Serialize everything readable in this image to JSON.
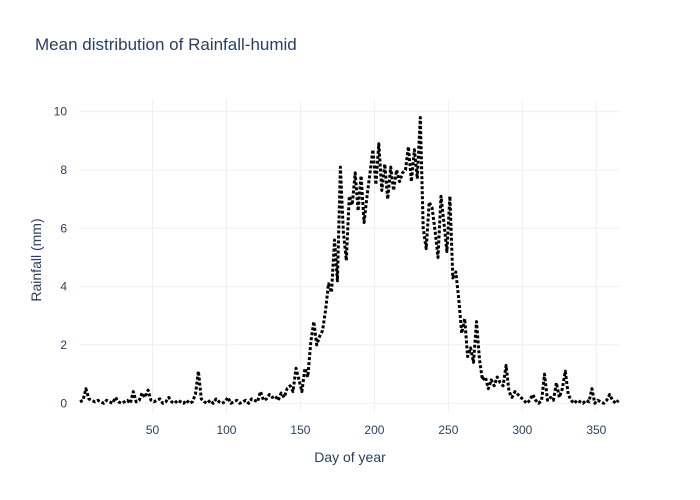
{
  "chart_data": {
    "type": "line",
    "title": "Mean distribution of Rainfall-humid",
    "xlabel": "Day of year",
    "ylabel": "Rainfall (mm)",
    "xlim": [
      1,
      366
    ],
    "ylim": [
      -0.3,
      10.4
    ],
    "x_ticks": [
      50,
      100,
      150,
      200,
      250,
      300,
      350
    ],
    "y_ticks": [
      0,
      2,
      4,
      6,
      8,
      10
    ],
    "grid": true,
    "line_color": "#000000",
    "line_style": "dot",
    "series": [
      {
        "x": [
          1,
          3,
          5,
          7,
          9,
          11,
          13,
          15,
          17,
          19,
          21,
          23,
          25,
          27,
          29,
          31,
          33,
          35,
          37,
          39,
          41,
          43,
          45,
          47,
          49,
          51,
          53,
          55,
          57,
          59,
          61,
          63,
          65,
          67,
          69,
          71,
          73,
          75,
          77,
          79,
          81,
          83,
          85,
          87,
          89,
          91,
          93,
          95,
          97,
          99,
          101,
          103,
          105,
          107,
          109,
          111,
          113,
          115,
          117,
          119,
          121,
          123,
          125,
          127,
          129,
          131,
          133,
          135,
          137,
          139,
          141,
          143,
          145,
          147,
          149,
          151,
          153,
          155,
          157,
          159,
          161,
          163,
          165,
          167,
          169,
          171,
          173,
          175,
          177,
          179,
          181,
          183,
          185,
          187,
          189,
          191,
          193,
          195,
          197,
          199,
          201,
          203,
          205,
          207,
          209,
          211,
          213,
          215,
          217,
          219,
          221,
          223,
          225,
          227,
          229,
          231,
          233,
          235,
          237,
          239,
          241,
          243,
          245,
          247,
          249,
          251,
          253,
          255,
          257,
          259,
          261,
          263,
          265,
          267,
          269,
          271,
          273,
          275,
          277,
          279,
          281,
          283,
          285,
          287,
          289,
          291,
          293,
          295,
          297,
          299,
          301,
          303,
          305,
          307,
          309,
          311,
          313,
          315,
          317,
          319,
          321,
          323,
          325,
          327,
          329,
          331,
          333,
          335,
          337,
          339,
          341,
          343,
          345,
          347,
          349,
          351,
          353,
          355,
          357,
          359,
          361,
          363,
          365
        ],
        "y": [
          0.05,
          0.1,
          0.5,
          0.15,
          0.1,
          0.05,
          0.1,
          0.05,
          0.0,
          0.1,
          0.05,
          0.0,
          0.2,
          0.05,
          0.0,
          0.05,
          0.1,
          0.0,
          0.4,
          0.05,
          0.1,
          0.35,
          0.2,
          0.45,
          0.1,
          0.05,
          0.1,
          0.15,
          0.0,
          0.05,
          0.2,
          0.05,
          0.0,
          0.1,
          0.05,
          0.0,
          0.1,
          0.0,
          0.05,
          0.3,
          1.1,
          0.15,
          0.05,
          0.0,
          0.1,
          0.0,
          0.15,
          0.05,
          0.0,
          0.05,
          0.2,
          0.0,
          0.05,
          0.1,
          0.0,
          0.05,
          0.1,
          0.0,
          0.15,
          0.1,
          0.05,
          0.4,
          0.1,
          0.15,
          0.3,
          0.2,
          0.25,
          0.1,
          0.35,
          0.2,
          0.5,
          0.6,
          0.4,
          1.2,
          0.8,
          0.4,
          1.2,
          0.9,
          2.1,
          2.8,
          2.0,
          2.3,
          2.5,
          3.2,
          4.1,
          3.8,
          5.6,
          4.2,
          8.1,
          5.9,
          4.9,
          7.1,
          6.8,
          7.9,
          6.6,
          7.8,
          6.2,
          7.1,
          7.9,
          8.7,
          7.5,
          8.9,
          7.3,
          8.2,
          7.0,
          8.1,
          7.3,
          8.0,
          7.6,
          7.9,
          8.0,
          8.8,
          7.6,
          8.7,
          7.7,
          9.8,
          6.0,
          5.3,
          6.9,
          6.7,
          5.9,
          5.0,
          7.1,
          6.2,
          5.2,
          7.1,
          4.3,
          4.5,
          3.6,
          2.4,
          2.9,
          1.6,
          1.9,
          1.4,
          2.8,
          1.5,
          0.8,
          0.9,
          0.5,
          0.8,
          0.6,
          0.9,
          0.7,
          0.6,
          1.3,
          0.4,
          0.2,
          0.4,
          0.3,
          0.2,
          0.1,
          0.0,
          0.1,
          0.3,
          0.1,
          0.0,
          0.1,
          1.0,
          0.1,
          0.2,
          0.1,
          0.7,
          0.2,
          0.5,
          1.1,
          0.3,
          0.1,
          0.0,
          0.1,
          0.05,
          0.0,
          0.1,
          0.05,
          0.5,
          0.0,
          0.1,
          0.05,
          0.0,
          0.1,
          0.3,
          0.1,
          0.0,
          0.1
        ]
      }
    ]
  }
}
